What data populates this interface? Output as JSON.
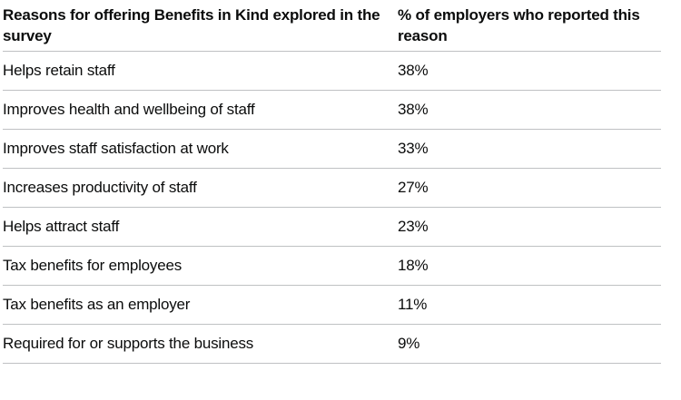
{
  "table": {
    "columns": [
      "Reasons for offering Benefits in Kind explored in the survey",
      "% of employers who reported this reason"
    ],
    "rows": [
      {
        "reason": "Helps retain staff",
        "value": "38%"
      },
      {
        "reason": "Improves health and wellbeing of staff",
        "value": "38%"
      },
      {
        "reason": "Improves staff satisfaction at work",
        "value": "33%"
      },
      {
        "reason": "Increases productivity of staff",
        "value": "27%"
      },
      {
        "reason": "Helps attract staff",
        "value": "23%"
      },
      {
        "reason": "Tax benefits for employees",
        "value": "18%"
      },
      {
        "reason": "Tax benefits as an employer",
        "value": "11%"
      },
      {
        "reason": "Required for or supports the business",
        "value": "9%"
      }
    ]
  },
  "colors": {
    "text": "#0b0c0c",
    "border": "#bfc1c3",
    "background": "#ffffff"
  },
  "chart_data": {
    "type": "table",
    "title": "Reasons for offering Benefits in Kind explored in the survey",
    "columns": [
      "Reasons for offering Benefits in Kind explored in the survey",
      "% of employers who reported this reason"
    ],
    "categories": [
      "Helps retain staff",
      "Improves health and wellbeing of staff",
      "Improves staff satisfaction at work",
      "Increases productivity of staff",
      "Helps attract staff",
      "Tax benefits for employees",
      "Tax benefits as an employer",
      "Required for or supports the business"
    ],
    "values": [
      38,
      38,
      33,
      27,
      23,
      18,
      11,
      9
    ],
    "unit": "%",
    "ylabel": "% of employers who reported this reason"
  }
}
